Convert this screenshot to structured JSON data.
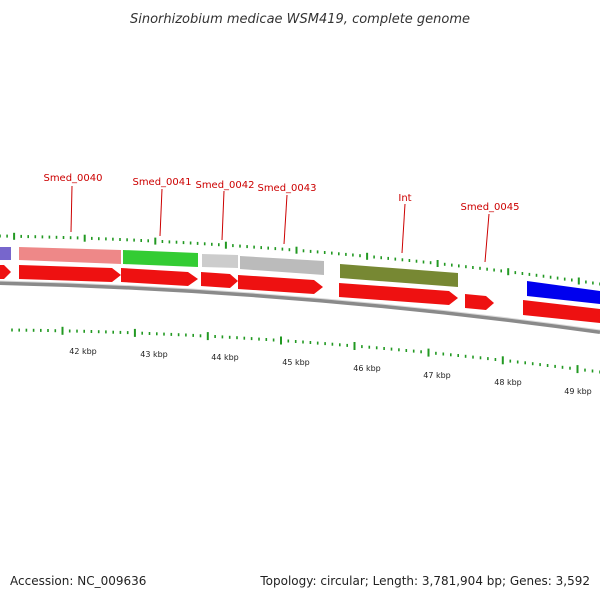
{
  "title": "Sinorhizobium medicae WSM419, complete genome",
  "footer": {
    "accession": "Accession: NC_009636",
    "stats": "Topology: circular; Length: 3,781,904 bp; Genes: 3,592"
  },
  "colors": {
    "tick": "#229922",
    "label": "#cc0000",
    "backbone": "#8a8a8a",
    "cds_strand": "#ee1111"
  },
  "gene_labels": [
    "Smed_0040",
    "Smed_0041",
    "Smed_0042",
    "Smed_0043",
    "Int",
    "Smed_0045"
  ],
  "scale_labels": [
    "42 kbp",
    "43 kbp",
    "44 kbp",
    "45 kbp",
    "46 kbp",
    "47 kbp",
    "48 kbp",
    "49 kbp"
  ],
  "colored_bands": [
    {
      "name": "blue-violet",
      "color": "#7766cc"
    },
    {
      "name": "pink",
      "color": "#ee8888"
    },
    {
      "name": "green",
      "color": "#33cc33"
    },
    {
      "name": "light-gray",
      "color": "#cccccc"
    },
    {
      "name": "gray",
      "color": "#bbbbbb"
    },
    {
      "name": "olive",
      "color": "#778833"
    },
    {
      "name": "blue",
      "color": "#0000ee"
    }
  ]
}
